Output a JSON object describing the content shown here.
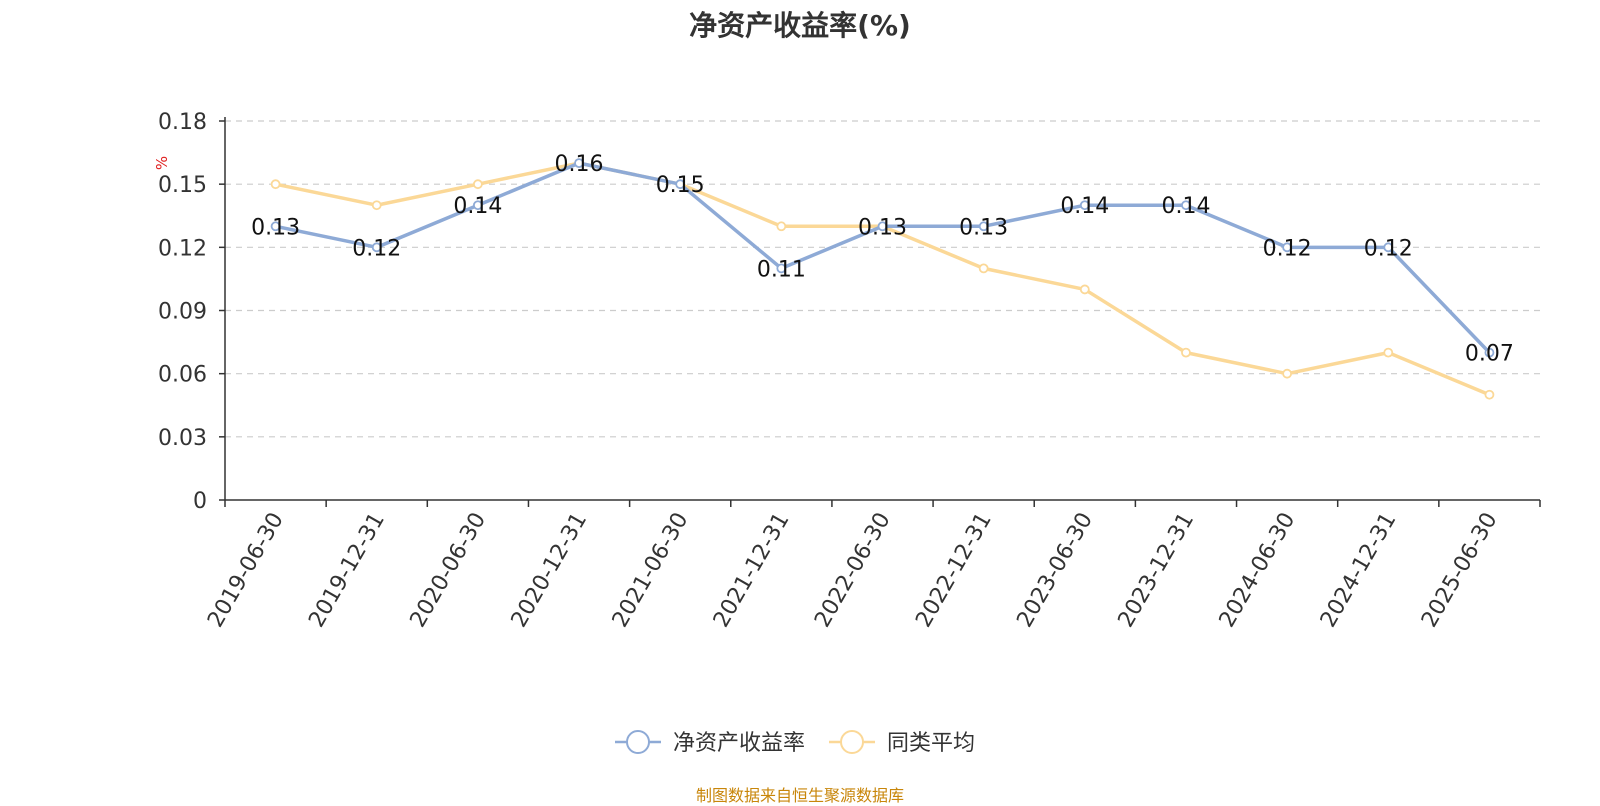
{
  "chart_data": {
    "type": "line",
    "title": "净资产收益率(%)",
    "ylabel": "%",
    "ylim": [
      0,
      0.18
    ],
    "yticks": [
      "0",
      "0.03",
      "0.06",
      "0.09",
      "0.12",
      "0.15",
      "0.18"
    ],
    "grid": true,
    "legend_position": "bottom",
    "categories": [
      "2019-06-30",
      "2019-12-31",
      "2020-06-30",
      "2020-12-31",
      "2021-06-30",
      "2021-12-31",
      "2022-06-30",
      "2022-12-31",
      "2023-06-30",
      "2023-12-31",
      "2024-06-30",
      "2024-12-31",
      "2025-06-30"
    ],
    "series": [
      {
        "name": "净资产收益率",
        "color": "#8eaad6",
        "values": [
          0.13,
          0.12,
          0.14,
          0.16,
          0.15,
          0.11,
          0.13,
          0.13,
          0.14,
          0.14,
          0.12,
          0.12,
          0.07
        ],
        "labels": [
          "0.13",
          "0.12",
          "0.14",
          "0.16",
          "0.15",
          "0.11",
          "0.13",
          "0.13",
          "0.14",
          "0.14",
          "0.12",
          "0.12",
          "0.07"
        ]
      },
      {
        "name": "同类平均",
        "color": "#fbd897",
        "values": [
          0.15,
          0.14,
          0.15,
          0.16,
          0.15,
          0.13,
          0.13,
          0.11,
          0.1,
          0.07,
          0.06,
          0.07,
          0.05
        ]
      }
    ]
  },
  "source": "制图数据来自恒生聚源数据库"
}
